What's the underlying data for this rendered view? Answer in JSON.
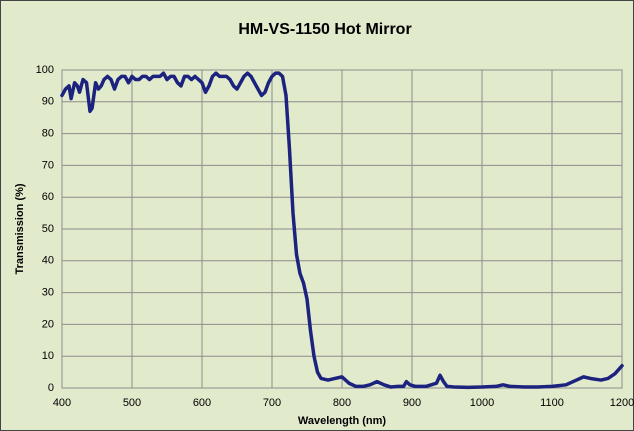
{
  "chart_data": {
    "type": "line",
    "title": "HM-VS-1150 Hot Mirror",
    "x_label": "Wavelength (nm)",
    "y_label": "Transmission (%)",
    "x": [
      400,
      405,
      410,
      413,
      418,
      422,
      425,
      430,
      435,
      440,
      443,
      448,
      452,
      456,
      460,
      465,
      470,
      475,
      480,
      485,
      490,
      495,
      500,
      505,
      510,
      515,
      520,
      525,
      530,
      535,
      540,
      545,
      550,
      555,
      560,
      565,
      570,
      575,
      580,
      585,
      590,
      595,
      600,
      605,
      610,
      615,
      620,
      625,
      630,
      635,
      640,
      645,
      650,
      655,
      660,
      665,
      670,
      675,
      680,
      685,
      690,
      695,
      700,
      705,
      710,
      715,
      720,
      725,
      730,
      735,
      740,
      745,
      750,
      755,
      760,
      765,
      770,
      780,
      790,
      800,
      810,
      820,
      830,
      840,
      850,
      860,
      870,
      880,
      888,
      892,
      897,
      905,
      920,
      935,
      940,
      945,
      950,
      960,
      980,
      1000,
      1020,
      1030,
      1040,
      1060,
      1080,
      1100,
      1120,
      1135,
      1145,
      1155,
      1170,
      1180,
      1190,
      1200
    ],
    "values": [
      92,
      94,
      95,
      91,
      96,
      95,
      93,
      97,
      96,
      87,
      88,
      96,
      94,
      95,
      97,
      98,
      97,
      94,
      97,
      98,
      98,
      96,
      98,
      97,
      97,
      98,
      98,
      97,
      98,
      98,
      98,
      99,
      97,
      98,
      98,
      96,
      95,
      98,
      98,
      97,
      98,
      97,
      96,
      93,
      95,
      98,
      99,
      98,
      98,
      98,
      97,
      95,
      94,
      96,
      98,
      99,
      98,
      96,
      94,
      92,
      93,
      96,
      98,
      99,
      99,
      98,
      92,
      75,
      55,
      42,
      36,
      33,
      28,
      18,
      10,
      5,
      3,
      2.5,
      3,
      3.5,
      1.5,
      0.5,
      0.5,
      1,
      2,
      1,
      0.3,
      0.5,
      0.5,
      2,
      1,
      0.5,
      0.5,
      1.5,
      4,
      2,
      0.5,
      0.3,
      0.2,
      0.3,
      0.5,
      1,
      0.5,
      0.3,
      0.3,
      0.5,
      1,
      2.5,
      3.5,
      3,
      2.5,
      3,
      4.5,
      7
    ],
    "color": "#1c237e",
    "xlim": [
      400,
      1200
    ],
    "xticks": [
      400,
      500,
      600,
      700,
      800,
      900,
      1000,
      1100,
      1200
    ],
    "ylim": [
      0,
      100
    ],
    "yticks": [
      0,
      10,
      20,
      30,
      40,
      50,
      60,
      70,
      80,
      90,
      100
    ],
    "grid": true
  }
}
